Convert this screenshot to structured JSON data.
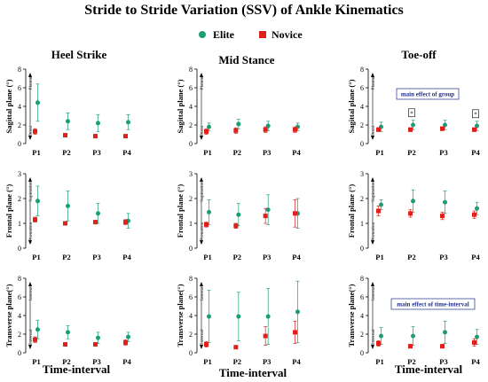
{
  "figure": {
    "title": "Stride to Stride Variation (SSV) of Ankle Kinematics",
    "legend": [
      {
        "label": "Elite",
        "color": "#1a9e77",
        "marker": "circle"
      },
      {
        "label": "Novice",
        "color": "#e0201b",
        "marker": "square"
      }
    ],
    "columns": [
      "Heel Strike",
      "Mid Stance",
      "Toe-off"
    ],
    "row_ylabels": [
      "Sagittal plane (°)",
      "Frontal plane (°)",
      "Transverse plane(°)"
    ],
    "row_dir_labels": [
      {
        "top": "Plantar",
        "bottom": "Dorsi"
      },
      {
        "top": "Supination",
        "bottom": "Pronation"
      },
      {
        "top": "Internal",
        "bottom": "External"
      }
    ],
    "xlabel": "Time-interval",
    "annotations": {
      "group": "main effect of group",
      "time": "main effect of time-interval",
      "star": "*"
    }
  },
  "chart_data": [
    {
      "type": "scatter",
      "row": 0,
      "col": 0,
      "ylim": [
        0,
        8
      ],
      "yticks": [
        0,
        2,
        4,
        6,
        8
      ],
      "categories": [
        "P1",
        "P2",
        "P3",
        "P4"
      ],
      "series": [
        {
          "name": "Elite",
          "values": [
            4.4,
            2.4,
            2.2,
            2.3
          ],
          "err": [
            2.0,
            0.9,
            0.9,
            0.8
          ]
        },
        {
          "name": "Novice",
          "values": [
            1.3,
            0.9,
            0.8,
            0.8
          ],
          "err": [
            0.3,
            0.15,
            0.15,
            0.15
          ]
        }
      ]
    },
    {
      "type": "scatter",
      "row": 0,
      "col": 1,
      "ylim": [
        0,
        8
      ],
      "yticks": [
        0,
        2,
        4,
        6,
        8
      ],
      "categories": [
        "P1",
        "P2",
        "P3",
        "P4"
      ],
      "series": [
        {
          "name": "Elite",
          "values": [
            1.8,
            2.1,
            1.9,
            1.8
          ],
          "err": [
            0.4,
            0.5,
            0.5,
            0.4
          ]
        },
        {
          "name": "Novice",
          "values": [
            1.3,
            1.4,
            1.5,
            1.5
          ],
          "err": [
            0.3,
            0.3,
            0.3,
            0.3
          ]
        }
      ]
    },
    {
      "type": "scatter",
      "row": 0,
      "col": 2,
      "ylim": [
        0,
        8
      ],
      "yticks": [
        0,
        2,
        4,
        6,
        8
      ],
      "categories": [
        "P1",
        "P2",
        "P3",
        "P4"
      ],
      "series": [
        {
          "name": "Elite",
          "values": [
            1.8,
            2.0,
            2.0,
            1.9
          ],
          "err": [
            0.5,
            0.5,
            0.5,
            0.5
          ]
        },
        {
          "name": "Novice",
          "values": [
            1.5,
            1.5,
            1.6,
            1.5
          ],
          "err": [
            0.2,
            0.2,
            0.2,
            0.2
          ]
        }
      ],
      "star_categories": [
        "P2",
        "P4"
      ],
      "annotation": "group"
    },
    {
      "type": "scatter",
      "row": 1,
      "col": 0,
      "ylim": [
        0,
        3
      ],
      "yticks": [
        0,
        1,
        2,
        3
      ],
      "categories": [
        "P1",
        "P2",
        "P3",
        "P4"
      ],
      "series": [
        {
          "name": "Elite",
          "values": [
            1.9,
            1.7,
            1.4,
            1.1
          ],
          "err": [
            0.6,
            0.6,
            0.4,
            0.3
          ]
        },
        {
          "name": "Novice",
          "values": [
            1.15,
            1.0,
            1.05,
            1.05
          ],
          "err": [
            0.1,
            0.05,
            0.07,
            0.1
          ]
        }
      ]
    },
    {
      "type": "scatter",
      "row": 1,
      "col": 1,
      "ylim": [
        0,
        3
      ],
      "yticks": [
        0,
        1,
        2,
        3
      ],
      "categories": [
        "P1",
        "P2",
        "P3",
        "P4"
      ],
      "series": [
        {
          "name": "Elite",
          "values": [
            1.45,
            1.35,
            1.55,
            1.4
          ],
          "err": [
            0.5,
            0.45,
            0.6,
            0.6
          ]
        },
        {
          "name": "Novice",
          "values": [
            0.95,
            0.9,
            1.3,
            1.4
          ],
          "err": [
            0.1,
            0.1,
            0.3,
            0.55
          ]
        }
      ]
    },
    {
      "type": "scatter",
      "row": 1,
      "col": 2,
      "ylim": [
        0,
        3
      ],
      "yticks": [
        0,
        1,
        2,
        3
      ],
      "categories": [
        "P1",
        "P2",
        "P3",
        "P4"
      ],
      "series": [
        {
          "name": "Elite",
          "values": [
            1.75,
            1.9,
            1.85,
            1.6
          ],
          "err": [
            0.2,
            0.45,
            0.45,
            0.25
          ]
        },
        {
          "name": "Novice",
          "values": [
            1.5,
            1.4,
            1.3,
            1.35
          ],
          "err": [
            0.2,
            0.15,
            0.15,
            0.15
          ]
        }
      ]
    },
    {
      "type": "scatter",
      "row": 2,
      "col": 0,
      "ylim": [
        0,
        8
      ],
      "yticks": [
        0,
        2,
        4,
        6,
        8
      ],
      "categories": [
        "P1",
        "P2",
        "P3",
        "P4"
      ],
      "series": [
        {
          "name": "Elite",
          "values": [
            2.5,
            2.2,
            1.6,
            1.7
          ],
          "err": [
            1.0,
            0.7,
            0.6,
            0.5
          ]
        },
        {
          "name": "Novice",
          "values": [
            1.4,
            0.9,
            0.9,
            1.1
          ],
          "err": [
            0.3,
            0.15,
            0.15,
            0.3
          ]
        }
      ]
    },
    {
      "type": "scatter",
      "row": 2,
      "col": 1,
      "ylim": [
        0,
        8
      ],
      "yticks": [
        0,
        2,
        4,
        6,
        8
      ],
      "categories": [
        "P1",
        "P2",
        "P3",
        "P4"
      ],
      "series": [
        {
          "name": "Elite",
          "values": [
            3.9,
            3.9,
            3.9,
            4.4
          ],
          "err": [
            2.8,
            2.6,
            3.0,
            3.3
          ]
        },
        {
          "name": "Novice",
          "values": [
            0.9,
            0.6,
            1.8,
            2.2
          ],
          "err": [
            0.3,
            0.1,
            1.0,
            1.2
          ]
        }
      ]
    },
    {
      "type": "scatter",
      "row": 2,
      "col": 2,
      "ylim": [
        0,
        8
      ],
      "yticks": [
        0,
        2,
        4,
        6,
        8
      ],
      "categories": [
        "P1",
        "P2",
        "P3",
        "P4"
      ],
      "series": [
        {
          "name": "Elite",
          "values": [
            1.8,
            1.8,
            2.2,
            1.7
          ],
          "err": [
            0.9,
            1.0,
            1.2,
            0.8
          ]
        },
        {
          "name": "Novice",
          "values": [
            1.0,
            0.7,
            0.7,
            1.1
          ],
          "err": [
            0.3,
            0.2,
            0.2,
            0.4
          ]
        }
      ],
      "annotation": "time"
    }
  ]
}
